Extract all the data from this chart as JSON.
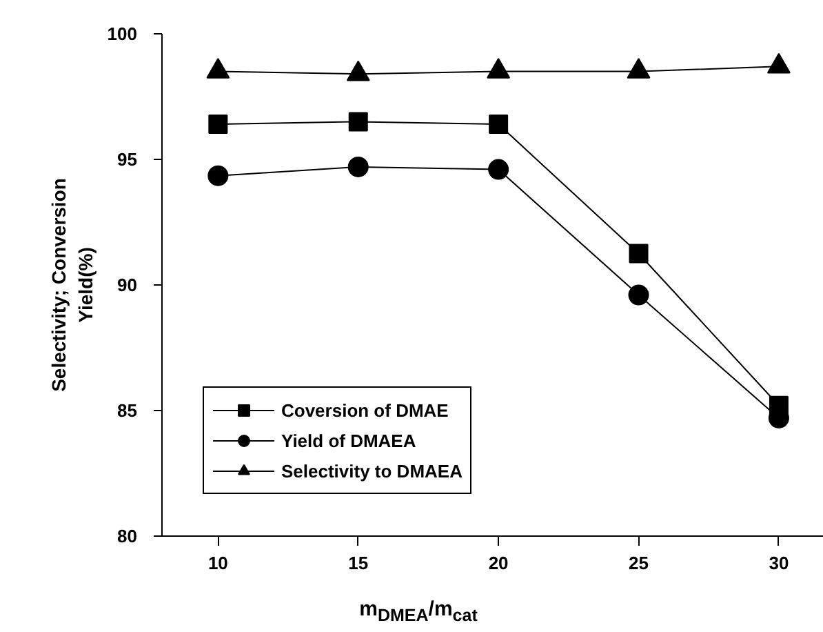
{
  "chart_data": {
    "type": "line",
    "xlabel": "m$_{DMEA}$/m$_{cat}$",
    "ylabel": "Selectivity; Conversion\nYield(%)",
    "x": [
      10,
      15,
      20,
      25,
      30
    ],
    "series": [
      {
        "name": "Coversion of DMAE",
        "color": "#000000",
        "marker": "square",
        "values": [
          96.4,
          96.5,
          96.4,
          91.25,
          85.2
        ]
      },
      {
        "name": "Yield of DMAEA",
        "color": "#000000",
        "marker": "circle",
        "values": [
          94.35,
          94.7,
          94.6,
          89.6,
          84.7
        ]
      },
      {
        "name": "Selectivity to DMAEA",
        "color": "#000000",
        "marker": "triangle",
        "values": [
          98.5,
          98.4,
          98.5,
          98.5,
          98.7
        ]
      }
    ],
    "xlim": [
      8,
      31.6
    ],
    "ylim": [
      80,
      100
    ],
    "xticks": [
      10,
      15,
      20,
      25,
      30
    ],
    "yticks": [
      80,
      85,
      90,
      95,
      100
    ],
    "grid": false,
    "legend": "bottom left",
    "line_style": "solid"
  }
}
